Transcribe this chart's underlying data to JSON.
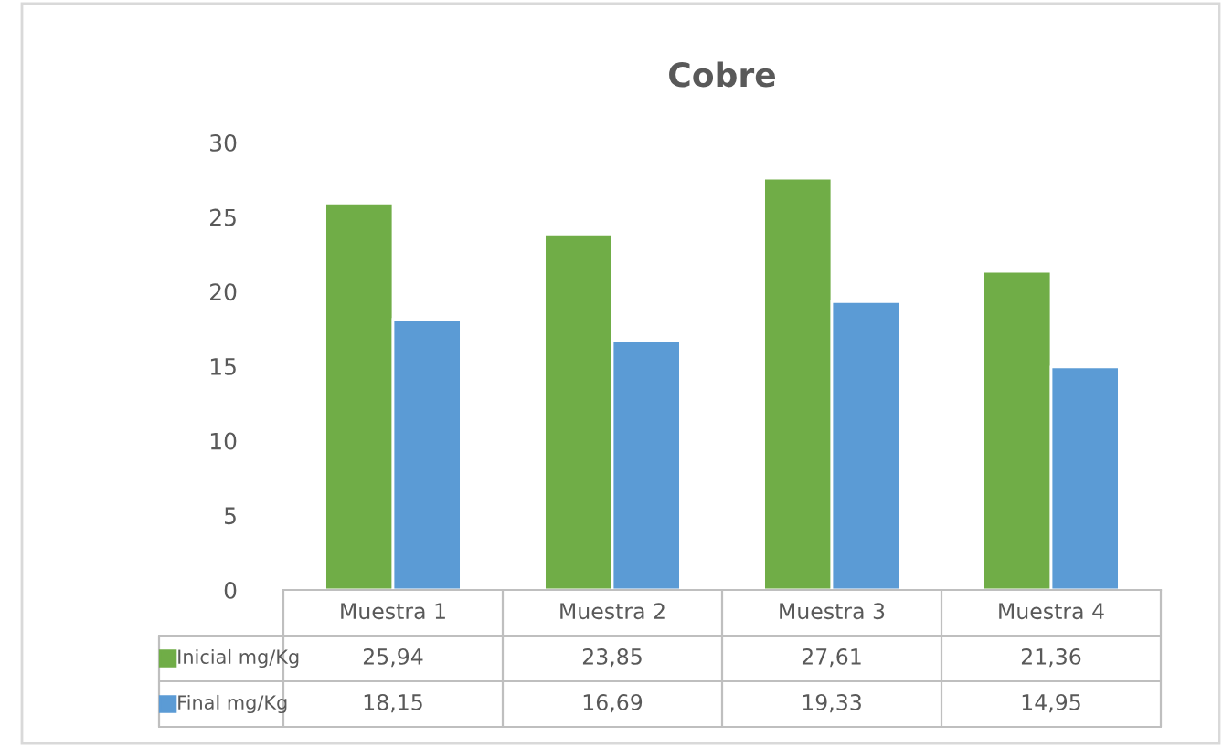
{
  "chart_data": {
    "type": "bar",
    "title": "Cobre",
    "categories": [
      "Muestra 1",
      "Muestra 2",
      "Muestra 3",
      "Muestra 4"
    ],
    "series": [
      {
        "name": "Inicial mg/Kg",
        "color": "#70ad47",
        "values": [
          25.94,
          23.85,
          27.61,
          21.36
        ],
        "value_labels": [
          "25,94",
          "23,85",
          "27,61",
          "21,36"
        ]
      },
      {
        "name": "Final mg/Kg",
        "color": "#5b9bd5",
        "values": [
          18.15,
          16.69,
          19.33,
          14.95
        ],
        "value_labels": [
          "18,15",
          "16,69",
          "19,33",
          "14,95"
        ]
      }
    ],
    "ylim": [
      0,
      30
    ],
    "yticks": [
      0,
      5,
      10,
      15,
      20,
      25,
      30
    ],
    "grid": false,
    "legend": "bottom"
  }
}
